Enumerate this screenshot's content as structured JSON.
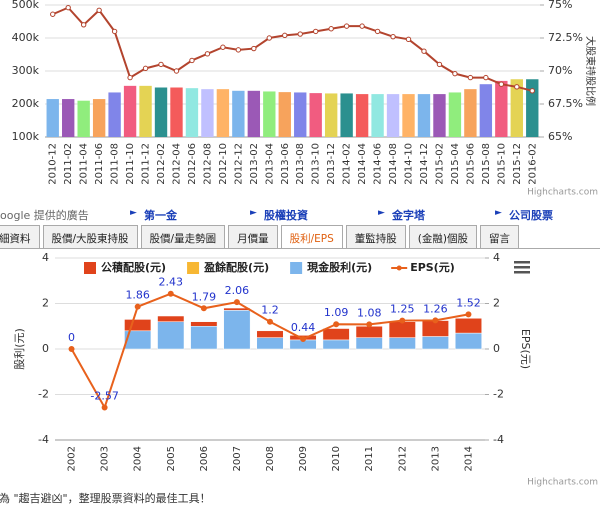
{
  "chart_data": [
    {
      "type": "bar",
      "right_axis_label": "大股東持股比例",
      "categories": [
        "2010-12",
        "2011-02",
        "2011-04",
        "2011-06",
        "2011-08",
        "2011-10",
        "2011-12",
        "2012-02",
        "2012-04",
        "2012-06",
        "2012-08",
        "2012-10",
        "2012-12",
        "2013-02",
        "2013-04",
        "2013-06",
        "2013-08",
        "2013-10",
        "2013-12",
        "2014-02",
        "2014-04",
        "2014-06",
        "2014-08",
        "2014-10",
        "2014-12",
        "2015-02",
        "2015-04",
        "2015-06",
        "2015-08",
        "2015-10",
        "2015-12",
        "2016-02"
      ],
      "series": [
        {
          "type": "bar",
          "colors": [
            "#7cb5ec",
            "#9b59b6",
            "#90ed7d",
            "#f7a35c",
            "#8085e9",
            "#f15c80",
            "#e4d354",
            "#2b908f",
            "#f45b5b",
            "#91e8e1",
            "#c0c0ff",
            "#ffb366"
          ],
          "values": [
            215000,
            215000,
            210000,
            215000,
            235000,
            255000,
            255000,
            250000,
            250000,
            248000,
            245000,
            245000,
            240000,
            240000,
            238000,
            236000,
            235000,
            233000,
            232000,
            232000,
            230000,
            230000,
            230000,
            230000,
            230000,
            230000,
            235000,
            245000,
            260000,
            270000,
            275000,
            275000
          ]
        },
        {
          "type": "line",
          "axis": "y2",
          "color": "#b3442e",
          "values": [
            74.3,
            74.8,
            73.5,
            74.6,
            73.0,
            69.5,
            70.2,
            70.5,
            70.0,
            70.8,
            71.3,
            71.8,
            71.6,
            71.7,
            72.5,
            72.7,
            72.8,
            73.0,
            73.2,
            73.4,
            73.4,
            73.0,
            72.6,
            72.4,
            71.5,
            70.5,
            69.8,
            69.5,
            69.5,
            69.0,
            68.8,
            68.5
          ]
        }
      ],
      "ylim": [
        100000,
        500000
      ],
      "yticks": [
        {
          "value": 100000,
          "label": "100k"
        },
        {
          "value": 200000,
          "label": "200k"
        },
        {
          "value": 300000,
          "label": "300k"
        },
        {
          "value": 400000,
          "label": "400k"
        },
        {
          "value": 500000,
          "label": "500k"
        }
      ],
      "y2lim": [
        65,
        75
      ],
      "y2ticks": [
        {
          "value": 65,
          "label": "65%"
        },
        {
          "value": 67.5,
          "label": "67.5%"
        },
        {
          "value": 70,
          "label": "70%"
        },
        {
          "value": 72.5,
          "label": "72.5%"
        },
        {
          "value": 75,
          "label": "75%"
        }
      ],
      "credits": "Highcharts.com"
    },
    {
      "type": "stacked-bar",
      "y_label": "股利(元)",
      "y2_label": "EPS(元)",
      "categories": [
        "2002",
        "2003",
        "2004",
        "2005",
        "2006",
        "2007",
        "2008",
        "2009",
        "2010",
        "2011",
        "2012",
        "2013",
        "2014"
      ],
      "series": [
        {
          "name": "公積配股(元)",
          "type": "bar",
          "color": "#e0431b",
          "values": [
            0,
            0,
            0.5,
            0.25,
            0.2,
            0.1,
            0.3,
            0.2,
            0.5,
            0.5,
            0.7,
            0.7,
            0.65
          ]
        },
        {
          "name": "盈餘配股(元)",
          "type": "bar",
          "color": "#f7b733",
          "values": [
            0,
            0,
            0,
            0,
            0,
            0,
            0,
            0,
            0,
            0,
            0,
            0,
            0
          ]
        },
        {
          "name": "現金股利(元)",
          "type": "bar",
          "color": "#7cb5ec",
          "values": [
            0,
            0,
            0.8,
            1.2,
            1.0,
            1.7,
            0.5,
            0.4,
            0.4,
            0.5,
            0.5,
            0.55,
            0.7
          ]
        },
        {
          "name": "EPS(元)",
          "type": "line",
          "axis": "y2",
          "color": "#e8611c",
          "label_color": "#2233cc",
          "values": [
            0,
            -2.57,
            1.86,
            2.43,
            1.79,
            2.06,
            1.2,
            0.44,
            1.09,
            1.08,
            1.25,
            1.26,
            1.52
          ]
        }
      ],
      "ylim": [
        -4,
        4
      ],
      "yticks": [
        -4,
        -2,
        0,
        2,
        4
      ],
      "y2lim": [
        -4,
        4
      ],
      "y2ticks": [
        -4,
        -2,
        0,
        2,
        4
      ],
      "grid": true,
      "credits": "Highcharts.com"
    }
  ],
  "ad": {
    "label": "oogle 提供的廣告",
    "links": [
      "第一金",
      "股權投資",
      "金字塔",
      "公司股票"
    ]
  },
  "tabs": [
    "細資料",
    "股價/大股東持股",
    "股價/量走勢圖",
    "月價量",
    "股利/EPS",
    "董監持股",
    "(金融)個股",
    "留言"
  ],
  "active_tab": 4,
  "footer": "是為 \"趨吉避凶\"，整理股票資料的最佳工具！"
}
